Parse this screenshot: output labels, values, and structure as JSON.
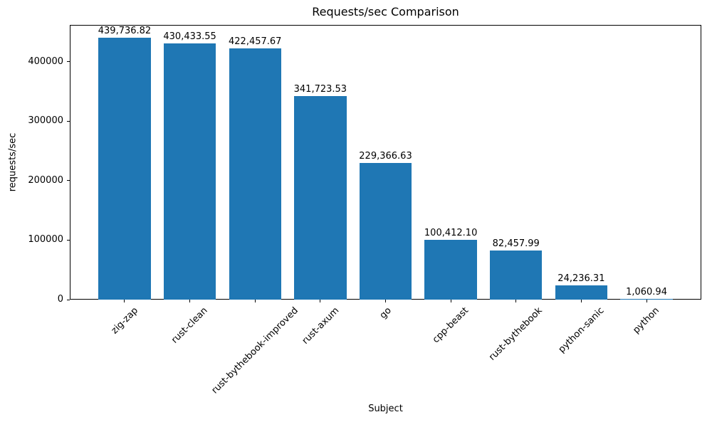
{
  "chart_data": {
    "type": "bar",
    "title": "Requests/sec Comparison",
    "xlabel": "Subject",
    "ylabel": "requests/sec",
    "categories": [
      "zig-zap",
      "rust-clean",
      "rust-bythebook-improved",
      "rust-axum",
      "go",
      "cpp-beast",
      "rust-bythebook",
      "python-sanic",
      "python"
    ],
    "values": [
      439736.82,
      430433.55,
      422457.67,
      341723.53,
      229366.63,
      100412.1,
      82457.99,
      24236.31,
      1060.94
    ],
    "value_labels": [
      "439,736.82",
      "430,433.55",
      "422,457.67",
      "341,723.53",
      "229,366.63",
      "100,412.10",
      "82,457.99",
      "24,236.31",
      "1,060.94"
    ],
    "bar_color": "#1f77b4",
    "text_color": "#000000",
    "background_color": "#ffffff",
    "ylim": [
      0,
      461723.66
    ],
    "yticks": [
      0,
      100000,
      200000,
      300000,
      400000
    ],
    "ytick_labels": [
      "0",
      "100000",
      "200000",
      "300000",
      "400000"
    ],
    "xtick_rotation_deg": 45,
    "bar_width_fraction": 0.8,
    "grid": false,
    "legend": null
  }
}
